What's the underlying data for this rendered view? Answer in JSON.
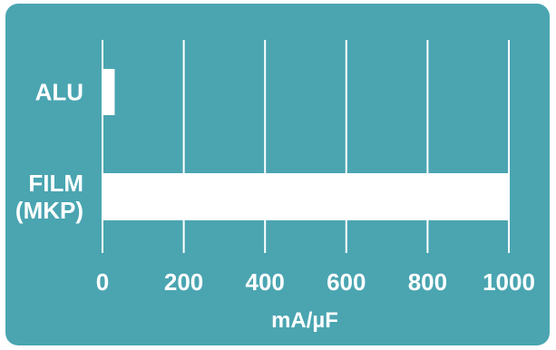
{
  "colors": {
    "background": "#4aa5b1",
    "bars": "#ffffff",
    "grid": "#ffffff"
  },
  "chart_data": {
    "type": "bar",
    "orientation": "horizontal",
    "categories": [
      [
        "ALU"
      ],
      [
        "FILM",
        "(MKP)"
      ]
    ],
    "values": [
      30,
      1000
    ],
    "xlabel": "mA/µF",
    "xlim": [
      0,
      1000
    ],
    "xticks": [
      0,
      200,
      400,
      600,
      800,
      1000
    ],
    "grid": "vertical lines at x ticks"
  }
}
